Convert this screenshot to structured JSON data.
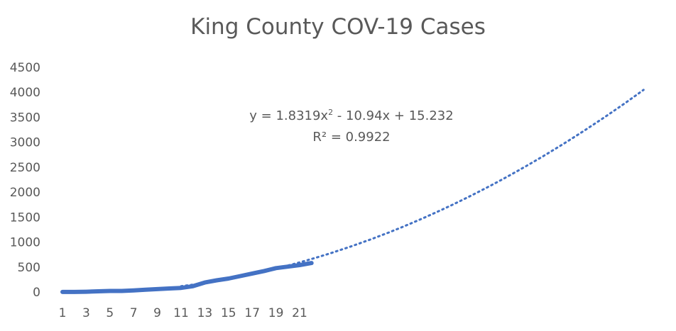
{
  "chart_data": {
    "type": "line",
    "title": "King County COV-19 Cases",
    "xlabel": "",
    "ylabel": "",
    "ylim": [
      0,
      4500
    ],
    "yticks": [
      0,
      500,
      1000,
      1500,
      2000,
      2500,
      3000,
      3500,
      4000,
      4500
    ],
    "xticks": [
      1,
      3,
      5,
      7,
      9,
      11,
      13,
      15,
      17,
      19,
      21
    ],
    "x_extent": [
      1,
      50
    ],
    "grid": false,
    "series": [
      {
        "x": [
          1,
          2,
          3,
          4,
          5,
          6,
          7,
          8,
          9,
          10,
          11,
          12,
          13,
          14,
          15,
          16,
          17,
          18,
          19,
          20,
          21,
          22
        ],
        "values": [
          1,
          2,
          5,
          14,
          21,
          21,
          31,
          45,
          58,
          71,
          83,
          116,
          190,
          234,
          270,
          320,
          370,
          420,
          479,
          508,
          540,
          580
        ],
        "color": "#4472c4"
      }
    ],
    "trendline": {
      "type": "polynomial",
      "order": 2,
      "coefficients": [
        1.8319,
        -10.94,
        15.232
      ],
      "x_range": [
        11,
        50
      ],
      "style": "dotted",
      "color": "#4472c4",
      "equation_text": "y = 1.8319x",
      "equation_exp": "2",
      "equation_rest": " - 10.94x + 15.232",
      "r2_text": "R² = 0.9922"
    }
  }
}
